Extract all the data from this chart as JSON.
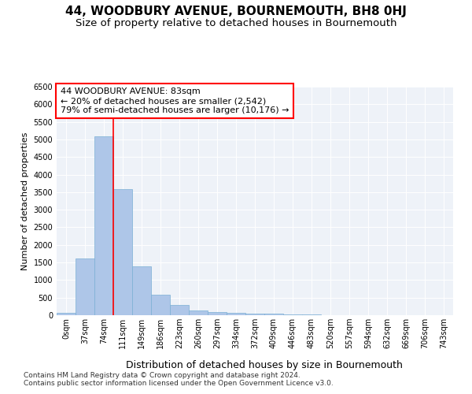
{
  "title": "44, WOODBURY AVENUE, BOURNEMOUTH, BH8 0HJ",
  "subtitle": "Size of property relative to detached houses in Bournemouth",
  "xlabel": "Distribution of detached houses by size in Bournemouth",
  "ylabel": "Number of detached properties",
  "bar_labels": [
    "0sqm",
    "37sqm",
    "74sqm",
    "111sqm",
    "149sqm",
    "186sqm",
    "223sqm",
    "260sqm",
    "297sqm",
    "334sqm",
    "372sqm",
    "409sqm",
    "446sqm",
    "483sqm",
    "520sqm",
    "557sqm",
    "594sqm",
    "632sqm",
    "669sqm",
    "706sqm",
    "743sqm"
  ],
  "bar_values": [
    70,
    1620,
    5080,
    3580,
    1380,
    580,
    300,
    130,
    90,
    60,
    40,
    40,
    20,
    15,
    10,
    8,
    5,
    5,
    3,
    3,
    3
  ],
  "bar_color": "#aec6e8",
  "bar_edgecolor": "#7aafd4",
  "red_line_x": 2,
  "annotation_line1": "44 WOODBURY AVENUE: 83sqm",
  "annotation_line2": "← 20% of detached houses are smaller (2,542)",
  "annotation_line3": "79% of semi-detached houses are larger (10,176) →",
  "footnote1": "Contains HM Land Registry data © Crown copyright and database right 2024.",
  "footnote2": "Contains public sector information licensed under the Open Government Licence v3.0.",
  "ylim": [
    0,
    6500
  ],
  "yticks": [
    0,
    500,
    1000,
    1500,
    2000,
    2500,
    3000,
    3500,
    4000,
    4500,
    5000,
    5500,
    6000,
    6500
  ],
  "background_color": "#eef2f8",
  "title_fontsize": 11,
  "subtitle_fontsize": 9.5,
  "annotation_fontsize": 8,
  "tick_fontsize": 7,
  "ylabel_fontsize": 8,
  "xlabel_fontsize": 9,
  "footnote_fontsize": 6.5
}
